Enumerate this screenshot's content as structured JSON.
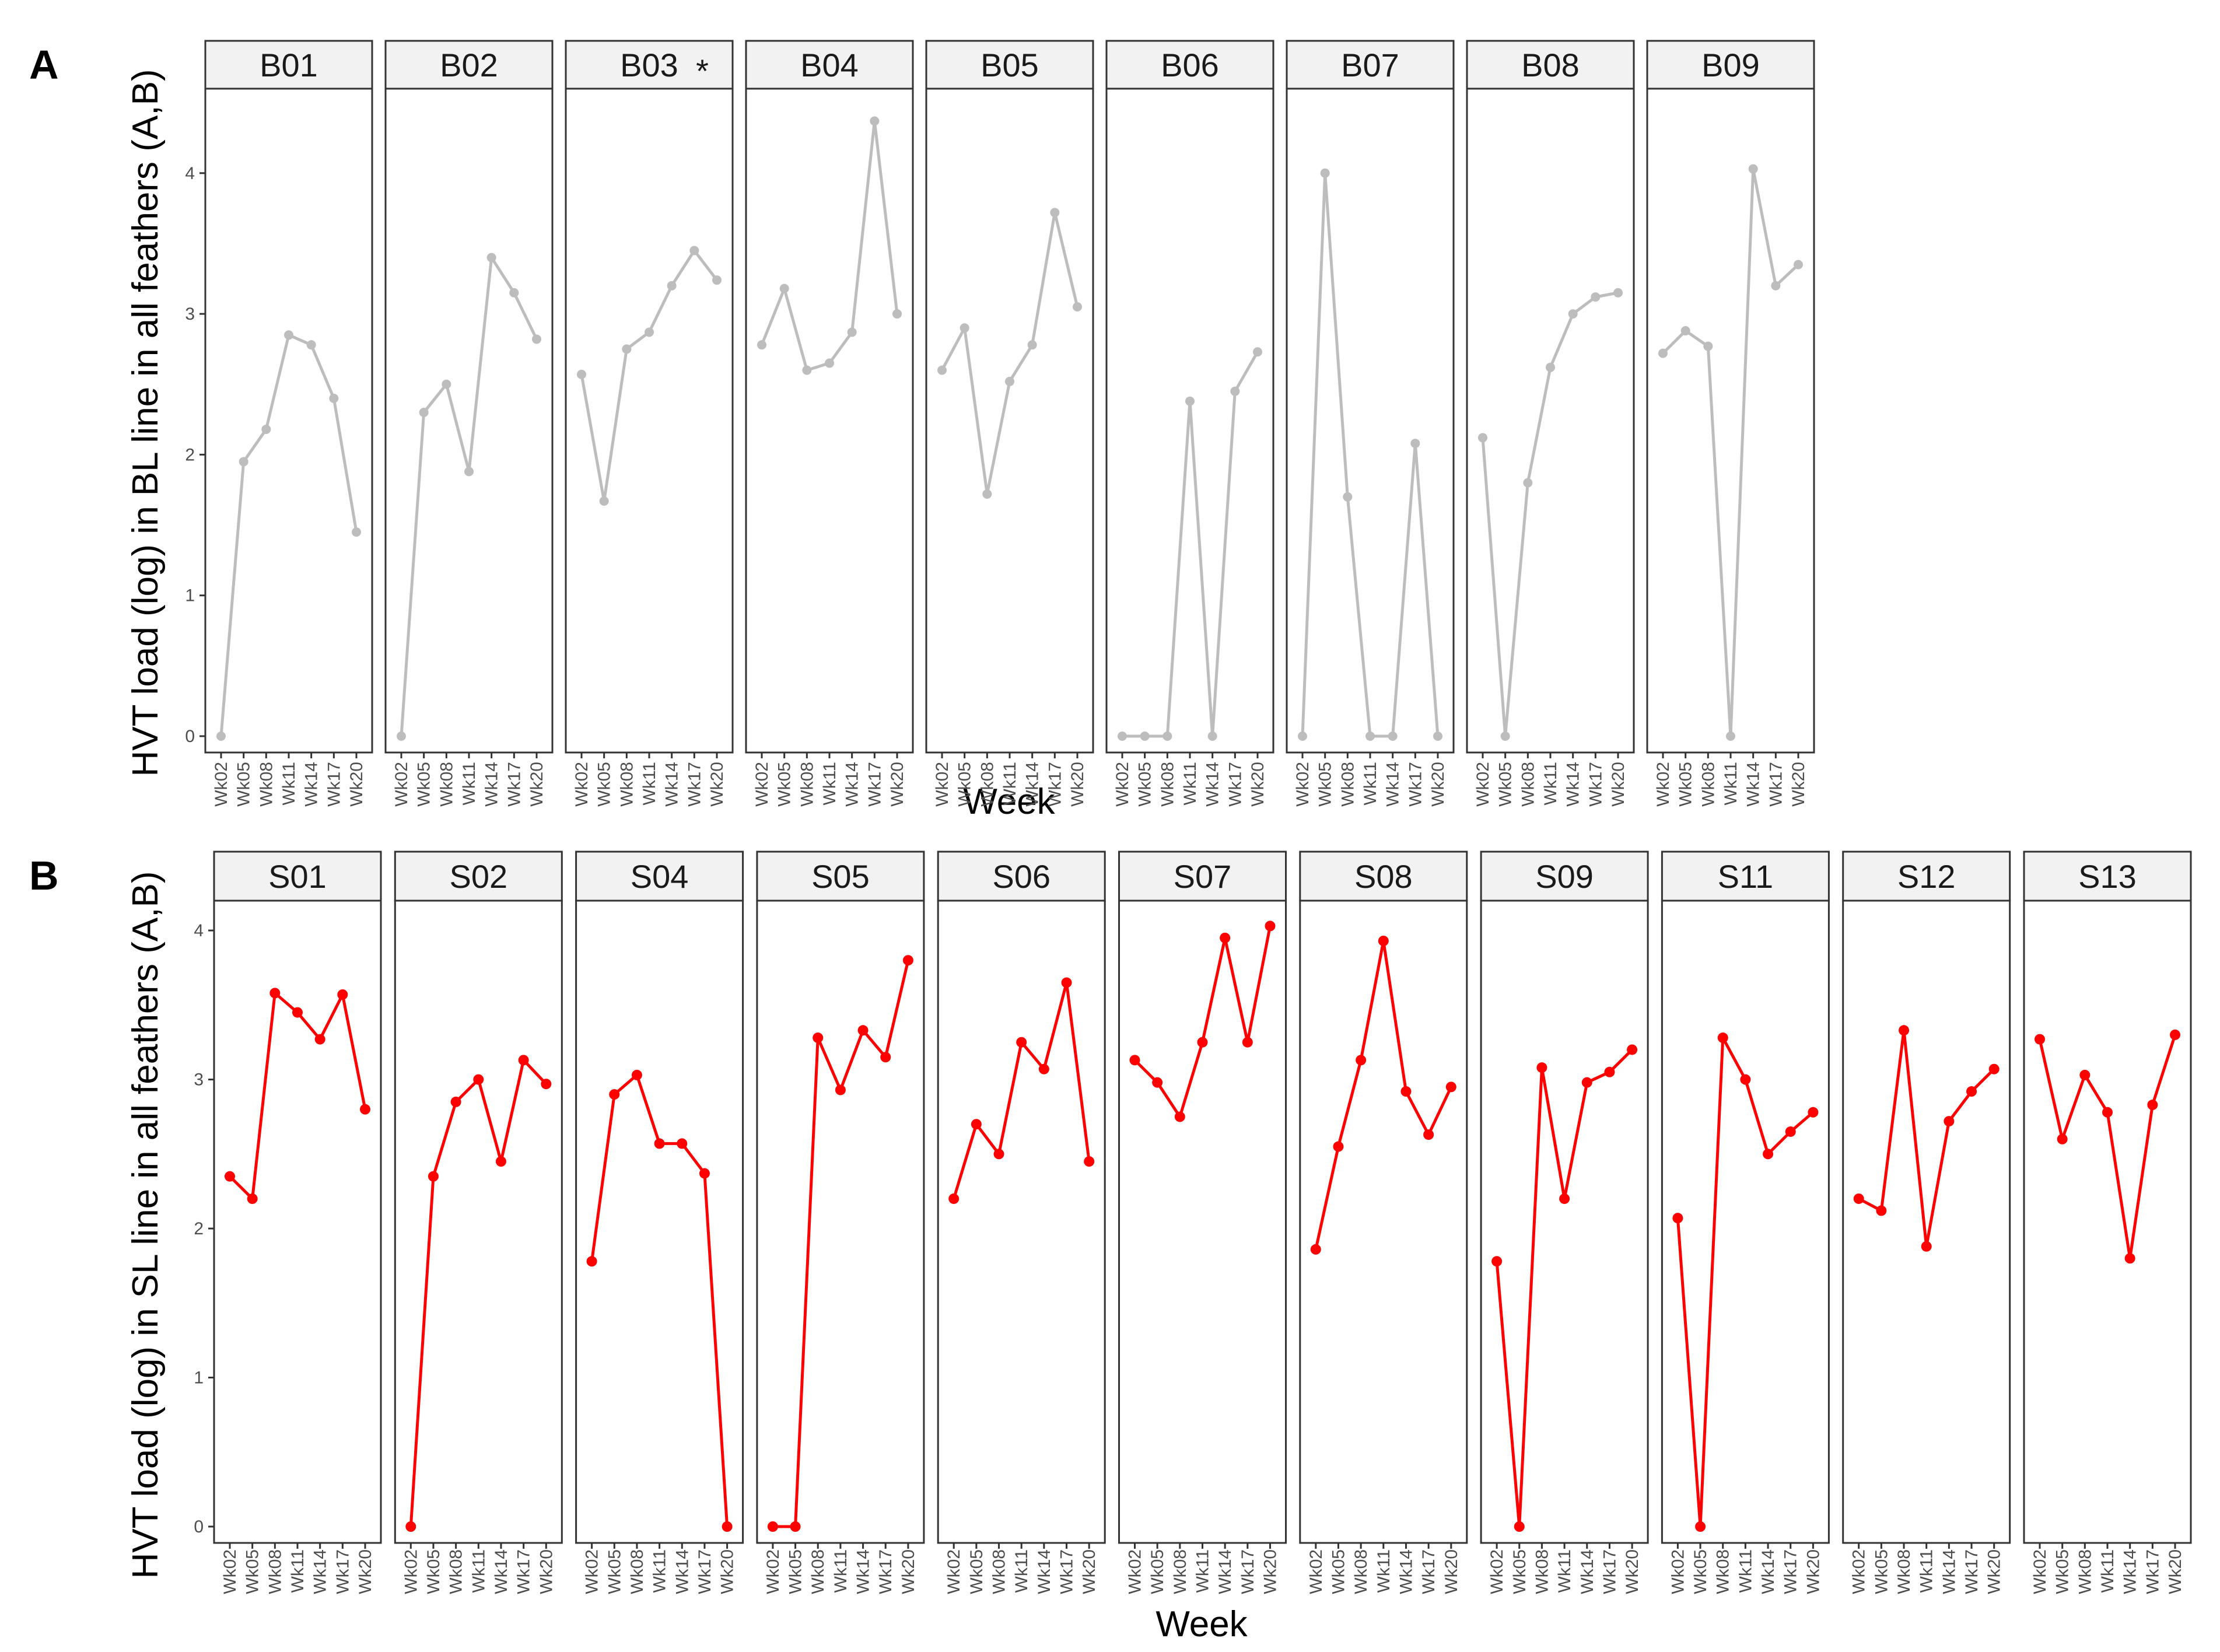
{
  "chart_data": [
    {
      "type": "line",
      "panel_label": "A",
      "ylabel": "HVT load (log) in BL line in all feathers (A,B)",
      "xlabel": "Week",
      "x": [
        "Wk02",
        "Wk05",
        "Wk08",
        "Wk11",
        "Wk14",
        "Wk17",
        "Wk20"
      ],
      "ylim": [
        0,
        4.6
      ],
      "yticks": [
        0,
        1,
        2,
        3,
        4
      ],
      "color": "#bdbdbd",
      "grid": false,
      "facets": [
        {
          "label": "B01",
          "marker": "",
          "values": [
            0,
            1.95,
            2.18,
            2.85,
            2.78,
            2.4,
            1.45
          ]
        },
        {
          "label": "B02",
          "marker": "",
          "values": [
            0,
            2.3,
            2.5,
            1.88,
            3.4,
            3.15,
            2.82
          ]
        },
        {
          "label": "B03",
          "marker": "*",
          "values": [
            2.57,
            1.67,
            2.75,
            2.87,
            3.2,
            3.45,
            3.24
          ]
        },
        {
          "label": "B04",
          "marker": "",
          "values": [
            2.78,
            3.18,
            2.6,
            2.65,
            2.87,
            4.37,
            3.0
          ]
        },
        {
          "label": "B05",
          "marker": "",
          "values": [
            2.6,
            2.9,
            1.72,
            2.52,
            2.78,
            3.72,
            3.05
          ]
        },
        {
          "label": "B06",
          "marker": "",
          "values": [
            0,
            0,
            0,
            2.38,
            0,
            2.45,
            2.73
          ]
        },
        {
          "label": "B07",
          "marker": "",
          "values": [
            0,
            4.0,
            1.7,
            0,
            0,
            2.08,
            0
          ]
        },
        {
          "label": "B08",
          "marker": "",
          "values": [
            2.12,
            0,
            1.8,
            2.62,
            3.0,
            3.12,
            3.15
          ]
        },
        {
          "label": "B09",
          "marker": "",
          "values": [
            2.72,
            2.88,
            2.77,
            0,
            4.03,
            3.2,
            3.35
          ]
        }
      ]
    },
    {
      "type": "line",
      "panel_label": "B",
      "ylabel": "HVT load (log) in SL line in all feathers (A,B)",
      "xlabel": "Week",
      "x": [
        "Wk02",
        "Wk05",
        "Wk08",
        "Wk11",
        "Wk14",
        "Wk17",
        "Wk20"
      ],
      "ylim": [
        0,
        4.2
      ],
      "yticks": [
        0,
        1,
        2,
        3,
        4
      ],
      "color": "#ff0000",
      "grid": false,
      "facets": [
        {
          "label": "S01",
          "marker": "",
          "values": [
            2.35,
            2.2,
            3.58,
            3.45,
            3.27,
            3.57,
            2.8
          ]
        },
        {
          "label": "S02",
          "marker": "",
          "values": [
            0,
            2.35,
            2.85,
            3.0,
            2.45,
            3.13,
            2.97
          ]
        },
        {
          "label": "S04",
          "marker": "",
          "values": [
            1.78,
            2.9,
            3.03,
            2.57,
            2.57,
            2.37,
            0
          ]
        },
        {
          "label": "S05",
          "marker": "",
          "values": [
            0,
            0,
            3.28,
            2.93,
            3.33,
            3.15,
            3.8
          ]
        },
        {
          "label": "S06",
          "marker": "",
          "values": [
            2.2,
            2.7,
            2.5,
            3.25,
            3.07,
            3.65,
            2.45
          ]
        },
        {
          "label": "S07",
          "marker": "",
          "values": [
            3.13,
            2.98,
            2.75,
            3.25,
            3.95,
            3.25,
            4.03
          ]
        },
        {
          "label": "S08",
          "marker": "",
          "values": [
            1.86,
            2.55,
            3.13,
            3.93,
            2.92,
            2.63,
            2.95
          ]
        },
        {
          "label": "S09",
          "marker": "",
          "values": [
            1.78,
            0,
            3.08,
            2.2,
            2.98,
            3.05,
            3.2
          ]
        },
        {
          "label": "S11",
          "marker": "",
          "values": [
            2.07,
            0,
            3.28,
            3.0,
            2.5,
            2.65,
            2.78
          ]
        },
        {
          "label": "S12",
          "marker": "",
          "values": [
            2.2,
            2.12,
            3.33,
            1.88,
            2.72,
            2.92,
            3.07
          ]
        },
        {
          "label": "S13",
          "marker": "",
          "values": [
            3.27,
            2.6,
            3.03,
            2.78,
            1.8,
            2.83,
            3.3
          ]
        }
      ]
    }
  ]
}
